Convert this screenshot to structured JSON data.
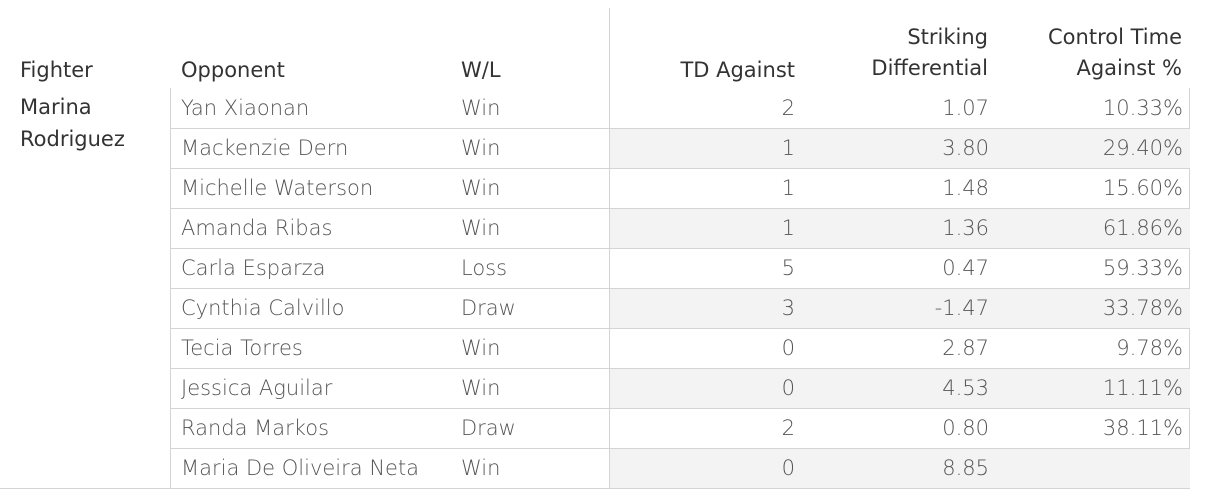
{
  "chart_data": {
    "type": "table",
    "columns": {
      "fighter": "Fighter",
      "opponent": "Opponent",
      "wl": "W/L",
      "td_against": "TD Against",
      "striking_differential_1": "Striking",
      "striking_differential_2": "Differential",
      "control_time_1": "Control Time",
      "control_time_2": "Against %"
    },
    "fighter": {
      "line1": "Marina",
      "line2": "Rodriguez"
    },
    "rows": [
      {
        "opponent": "Yan Xiaonan",
        "wl": "Win",
        "td_against": "2",
        "striking_differential": "1.07",
        "control_time_against": "10.33%"
      },
      {
        "opponent": "Mackenzie Dern",
        "wl": "Win",
        "td_against": "1",
        "striking_differential": "3.80",
        "control_time_against": "29.40%"
      },
      {
        "opponent": "Michelle Waterson",
        "wl": "Win",
        "td_against": "1",
        "striking_differential": "1.48",
        "control_time_against": "15.60%"
      },
      {
        "opponent": "Amanda Ribas",
        "wl": "Win",
        "td_against": "1",
        "striking_differential": "1.36",
        "control_time_against": "61.86%"
      },
      {
        "opponent": "Carla Esparza",
        "wl": "Loss",
        "td_against": "5",
        "striking_differential": "0.47",
        "control_time_against": "59.33%"
      },
      {
        "opponent": "Cynthia Calvillo",
        "wl": "Draw",
        "td_against": "3",
        "striking_differential": "-1.47",
        "control_time_against": "33.78%"
      },
      {
        "opponent": "Tecia Torres",
        "wl": "Win",
        "td_against": "0",
        "striking_differential": "2.87",
        "control_time_against": "9.78%"
      },
      {
        "opponent": "Jessica Aguilar",
        "wl": "Win",
        "td_against": "0",
        "striking_differential": "4.53",
        "control_time_against": "11.11%"
      },
      {
        "opponent": "Randa Markos",
        "wl": "Draw",
        "td_against": "2",
        "striking_differential": "0.80",
        "control_time_against": "38.11%"
      },
      {
        "opponent": "Maria De Oliveira Neta",
        "wl": "Win",
        "td_against": "0",
        "striking_differential": "8.85",
        "control_time_against": ""
      }
    ]
  }
}
